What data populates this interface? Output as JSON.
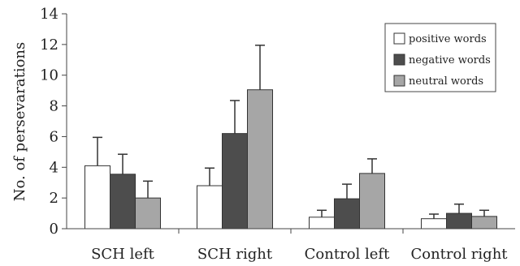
{
  "chart_data": {
    "type": "bar",
    "title": "",
    "xlabel": "",
    "ylabel": "No. of persevarations",
    "ylim": [
      0,
      14
    ],
    "yticks": [
      0,
      2,
      4,
      6,
      8,
      10,
      12,
      14
    ],
    "grid": false,
    "legend_position": "top-right",
    "categories": [
      "SCH left",
      "SCH right",
      "Control left",
      "Control right"
    ],
    "series": [
      {
        "name": "positive words",
        "color": "#ffffff",
        "values": [
          4.1,
          2.8,
          0.75,
          0.65
        ],
        "errors": [
          1.85,
          1.15,
          0.45,
          0.3
        ]
      },
      {
        "name": "negative words",
        "color": "#4d4d4d",
        "values": [
          3.55,
          6.2,
          1.95,
          1.0
        ],
        "errors": [
          1.3,
          2.15,
          0.95,
          0.6
        ]
      },
      {
        "name": "neutral words",
        "color": "#a6a6a6",
        "values": [
          2.0,
          9.05,
          3.6,
          0.8
        ],
        "errors": [
          1.1,
          2.9,
          0.95,
          0.4
        ]
      }
    ]
  }
}
